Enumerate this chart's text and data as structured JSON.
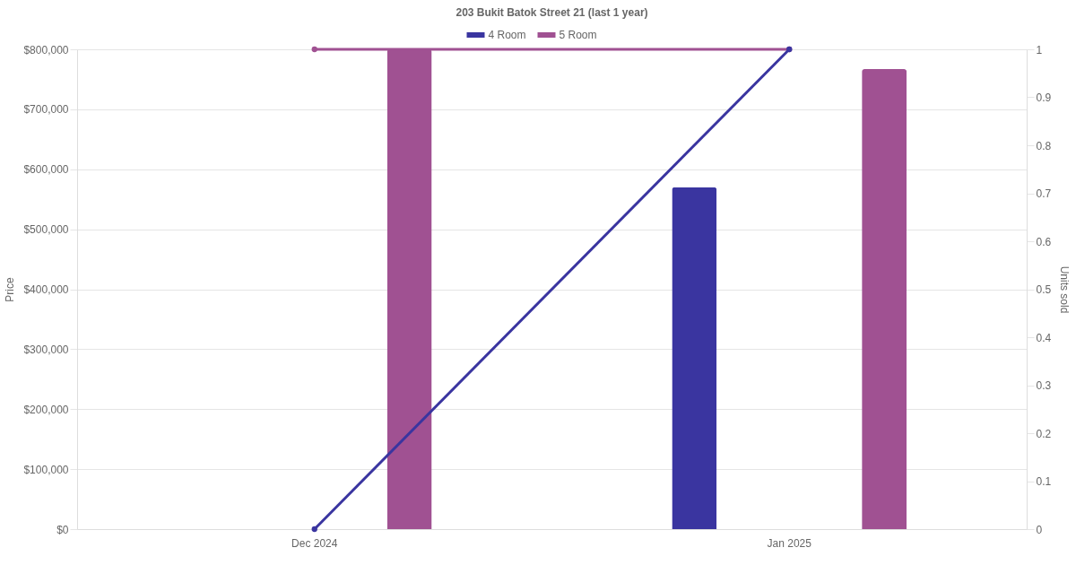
{
  "chart_data": {
    "type": "bar",
    "title": "203 Bukit Batok Street 21 (last 1 year)",
    "categories": [
      "Dec 2024",
      "Jan 2025"
    ],
    "series": [
      {
        "name": "4 Room",
        "color": "#3a35a0",
        "values": [
          null,
          570000
        ]
      },
      {
        "name": "5 Room",
        "color": "#a05192",
        "values": [
          800000,
          767000
        ]
      },
      {
        "type": "line",
        "axis": "y2",
        "color": "#3a35a0",
        "values": [
          0,
          1
        ]
      },
      {
        "type": "line",
        "axis": "y2",
        "color": "#a05192",
        "values": [
          1,
          1
        ]
      }
    ],
    "ylabel": "Price",
    "y2label": "Units sold",
    "ylim": [
      0,
      800000
    ],
    "yticks": [
      {
        "value": 0,
        "label": "$0"
      },
      {
        "value": 100000,
        "label": "$100,000"
      },
      {
        "value": 200000,
        "label": "$200,000"
      },
      {
        "value": 300000,
        "label": "$300,000"
      },
      {
        "value": 400000,
        "label": "$400,000"
      },
      {
        "value": 500000,
        "label": "$500,000"
      },
      {
        "value": 600000,
        "label": "$600,000"
      },
      {
        "value": 700000,
        "label": "$700,000"
      },
      {
        "value": 800000,
        "label": "$800,000"
      }
    ],
    "y2lim": [
      0,
      1
    ],
    "y2ticks": [
      0,
      0.1,
      0.2,
      0.3,
      0.4,
      0.5,
      0.6,
      0.7,
      0.8,
      0.9,
      1
    ],
    "grid": "y",
    "legend": "top",
    "marker": "circle",
    "line_style": "solid"
  }
}
